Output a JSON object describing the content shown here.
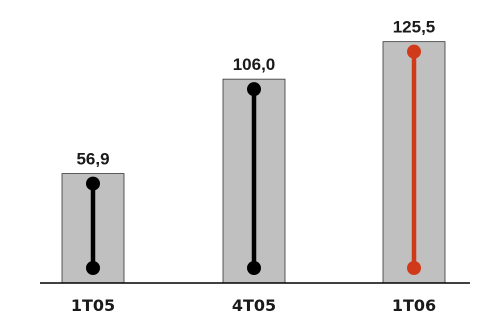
{
  "chart_data": {
    "type": "bar",
    "categories": [
      "1T05",
      "4T05",
      "1T06"
    ],
    "values": [
      56.9,
      106.0,
      125.5
    ],
    "data_labels": [
      "56,9",
      "106,0",
      "125,5"
    ],
    "title": "",
    "xlabel": "",
    "ylabel": "",
    "ylim": [
      0,
      130
    ],
    "grid": false,
    "legend": "none",
    "bar_color": "#c0c0c0",
    "bar_border_color": "#333333",
    "lollipop_colors": [
      "#000000",
      "#000000",
      "#d03a1a"
    ],
    "axis_color": "#000000",
    "label_color": "#1a1a1a"
  }
}
